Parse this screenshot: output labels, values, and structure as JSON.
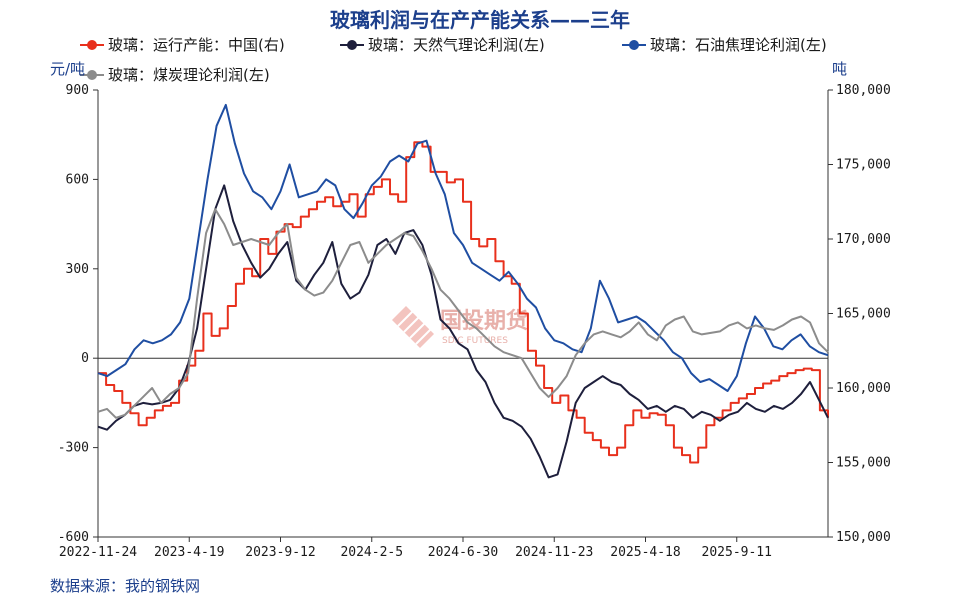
{
  "chart_data": {
    "type": "line",
    "title": "玻璃利润与在产产能关系——三年",
    "left_unit": "元/吨",
    "right_unit": "吨",
    "left_ylim": [
      -600,
      900
    ],
    "left_ticks": [
      -600,
      -300,
      0,
      300,
      600,
      900
    ],
    "left_tick_labels": [
      "-600",
      "-300",
      "0",
      "300",
      "600",
      "900"
    ],
    "right_ylim": [
      150000,
      180000
    ],
    "right_ticks": [
      150000,
      155000,
      160000,
      165000,
      170000,
      175000,
      180000
    ],
    "right_tick_labels": [
      "150,000",
      "155,000",
      "160,000",
      "165,000",
      "170,000",
      "175,000",
      "180,000"
    ],
    "x_tick_labels": [
      "2022-11-24",
      "2023-4-19",
      "2023-9-12",
      "2024-2-5",
      "2024-6-30",
      "2024-11-23",
      "2025-4-18",
      "2025-9-11"
    ],
    "x_range_index": [
      0,
      106
    ],
    "series": [
      {
        "name": "玻璃：运行产能：中国(右)",
        "axis": "right",
        "color": "#e8301c",
        "values": [
          161000,
          160200,
          159800,
          159000,
          158300,
          157500,
          158000,
          158500,
          158800,
          159000,
          160500,
          161500,
          162500,
          165000,
          163500,
          164000,
          165500,
          167000,
          168000,
          167500,
          170000,
          169000,
          170500,
          171000,
          170800,
          171500,
          172000,
          172500,
          172800,
          172200,
          172500,
          173000,
          171500,
          173000,
          173500,
          174000,
          173000,
          172500,
          175500,
          176500,
          176200,
          174500,
          174500,
          173800,
          174000,
          172500,
          170000,
          169500,
          170000,
          168500,
          167500,
          167000,
          165000,
          162500,
          161500,
          160000,
          159000,
          159500,
          158500,
          158000,
          157000,
          156500,
          156000,
          155500,
          156000,
          157500,
          158500,
          158000,
          158300,
          158200,
          157500,
          156000,
          155500,
          155000,
          156000,
          157500,
          158000,
          158500,
          159000,
          159300,
          159600,
          160000,
          160300,
          160500,
          160800,
          161000,
          161200,
          161300,
          161200,
          158500,
          158000
        ]
      },
      {
        "name": "玻璃：天然气理论利润(左)",
        "axis": "left",
        "color": "#1e1f3c",
        "values": [
          -230,
          -240,
          -210,
          -190,
          -160,
          -150,
          -155,
          -150,
          -140,
          -100,
          -20,
          100,
          300,
          500,
          580,
          460,
          380,
          320,
          270,
          300,
          350,
          390,
          260,
          230,
          280,
          320,
          390,
          250,
          200,
          220,
          280,
          380,
          400,
          350,
          420,
          430,
          380,
          280,
          130,
          100,
          50,
          30,
          -40,
          -80,
          -150,
          -200,
          -210,
          -230,
          -270,
          -330,
          -400,
          -390,
          -280,
          -150,
          -100,
          -80,
          -60,
          -80,
          -90,
          -120,
          -140,
          -170,
          -160,
          -180,
          -160,
          -170,
          -200,
          -180,
          -190,
          -210,
          -190,
          -180,
          -150,
          -170,
          -180,
          -160,
          -170,
          -150,
          -120,
          -80,
          -140,
          -200
        ]
      },
      {
        "name": "玻璃：石油焦理论利润(左)",
        "axis": "left",
        "color": "#1f4ea2",
        "values": [
          -50,
          -60,
          -40,
          -20,
          30,
          60,
          50,
          60,
          80,
          120,
          200,
          400,
          600,
          780,
          850,
          720,
          620,
          560,
          540,
          500,
          560,
          650,
          540,
          550,
          560,
          600,
          580,
          500,
          470,
          520,
          580,
          610,
          660,
          680,
          660,
          720,
          730,
          620,
          550,
          420,
          380,
          320,
          300,
          280,
          260,
          290,
          250,
          200,
          170,
          100,
          60,
          50,
          30,
          20,
          100,
          260,
          200,
          120,
          130,
          140,
          120,
          90,
          60,
          20,
          0,
          -50,
          -80,
          -70,
          -90,
          -110,
          -60,
          50,
          140,
          100,
          40,
          30,
          60,
          80,
          40,
          20,
          10
        ]
      },
      {
        "name": "玻璃：煤炭理论利润(左)",
        "axis": "left",
        "color": "#8c8c8c",
        "values": [
          -180,
          -170,
          -200,
          -190,
          -160,
          -130,
          -100,
          -150,
          -120,
          -100,
          -50,
          200,
          420,
          500,
          450,
          380,
          390,
          400,
          390,
          380,
          420,
          450,
          270,
          230,
          210,
          220,
          260,
          320,
          380,
          390,
          320,
          350,
          380,
          400,
          420,
          410,
          360,
          300,
          230,
          200,
          160,
          120,
          100,
          70,
          40,
          20,
          10,
          0,
          -50,
          -100,
          -130,
          -100,
          -60,
          10,
          50,
          80,
          90,
          80,
          70,
          90,
          120,
          80,
          60,
          110,
          130,
          140,
          90,
          80,
          85,
          90,
          110,
          120,
          100,
          110,
          100,
          95,
          110,
          130,
          140,
          120,
          50,
          20
        ]
      }
    ],
    "watermark": {
      "main": "国投期货",
      "sub": "SDIC FUTURES"
    },
    "source": "数据来源：我的钢铁网"
  }
}
